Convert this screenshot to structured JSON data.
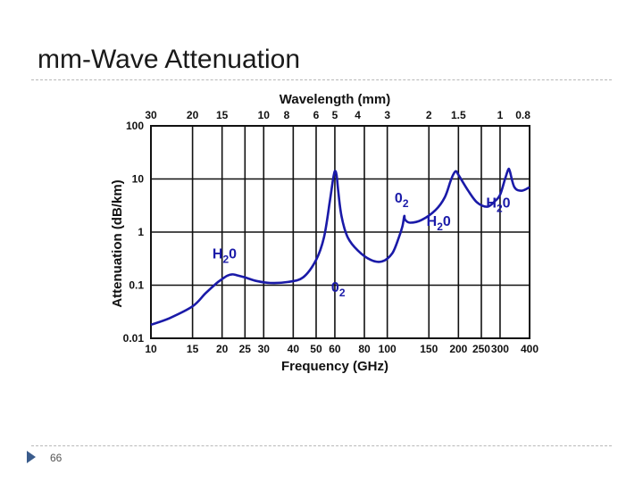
{
  "slide": {
    "title": "mm-Wave Attenuation",
    "page_number": "66"
  },
  "chart_data": {
    "type": "line",
    "title": "Wavelength (mm)",
    "xlabel": "Frequency (GHz)",
    "ylabel": "Attenuation (dB/km)",
    "x_scale": "log",
    "y_scale": "log",
    "xlim": [
      10,
      400
    ],
    "ylim": [
      0.01,
      100
    ],
    "grid": true,
    "x_ticks": [
      {
        "value": 10,
        "label": "10"
      },
      {
        "value": 15,
        "label": "15"
      },
      {
        "value": 20,
        "label": "20"
      },
      {
        "value": 25,
        "label": "25"
      },
      {
        "value": 30,
        "label": "30"
      },
      {
        "value": 40,
        "label": "40"
      },
      {
        "value": 50,
        "label": "50"
      },
      {
        "value": 60,
        "label": "60"
      },
      {
        "value": 80,
        "label": "80"
      },
      {
        "value": 100,
        "label": "100"
      },
      {
        "value": 150,
        "label": "150"
      },
      {
        "value": 200,
        "label": "200"
      },
      {
        "value": 250,
        "label": "250"
      },
      {
        "value": 300,
        "label": "300"
      },
      {
        "value": 400,
        "label": "400"
      }
    ],
    "top_ticks": [
      {
        "value": 30,
        "label": "30"
      },
      {
        "value": 20,
        "label": "20"
      },
      {
        "value": 15,
        "label": "15"
      },
      {
        "value": 10,
        "label": "10"
      },
      {
        "value": 8,
        "label": "8"
      },
      {
        "value": 6,
        "label": "6"
      },
      {
        "value": 5,
        "label": "5"
      },
      {
        "value": 4,
        "label": "4"
      },
      {
        "value": 3,
        "label": "3"
      },
      {
        "value": 2,
        "label": "2"
      },
      {
        "value": 1.5,
        "label": "1.5"
      },
      {
        "value": 1,
        "label": "1"
      },
      {
        "value": 0.8,
        "label": "0.8"
      }
    ],
    "y_ticks": [
      {
        "value": 100,
        "label": "100"
      },
      {
        "value": 10,
        "label": "10"
      },
      {
        "value": 1,
        "label": "1"
      },
      {
        "value": 0.1,
        "label": "0.1"
      },
      {
        "value": 0.01,
        "label": "0.01"
      }
    ],
    "series": [
      {
        "color": "#1a1aa8",
        "x": [
          10,
          12,
          15,
          17,
          19,
          20,
          21,
          22,
          23,
          25,
          28,
          32,
          38,
          44,
          50,
          54,
          57,
          59,
          60,
          61,
          62,
          64,
          68,
          75,
          85,
          95,
          105,
          112,
          116,
          118,
          119,
          125,
          140,
          160,
          175,
          185,
          190,
          195,
          200,
          220,
          240,
          265,
          285,
          300,
          315,
          325,
          330,
          345,
          370,
          400
        ],
        "y": [
          0.018,
          0.024,
          0.04,
          0.07,
          0.11,
          0.13,
          0.15,
          0.16,
          0.155,
          0.14,
          0.12,
          0.11,
          0.115,
          0.14,
          0.3,
          0.8,
          3.5,
          10,
          14,
          12,
          6,
          2,
          0.8,
          0.45,
          0.3,
          0.28,
          0.4,
          0.8,
          1.3,
          2.0,
          1.7,
          1.5,
          1.7,
          2.6,
          4.5,
          9.0,
          12,
          14,
          12,
          6,
          3.6,
          3.0,
          3.8,
          5.0,
          10,
          15,
          14,
          7,
          6,
          7
        ]
      }
    ],
    "annotations": [
      {
        "text": "H",
        "sub": "2",
        "tail": "0",
        "x": 20.5,
        "y": 0.32
      },
      {
        "text": "0",
        "sub": "2",
        "tail": "",
        "x": 62,
        "y": 0.075
      },
      {
        "text": "0",
        "sub": "2",
        "tail": "",
        "x": 115,
        "y": 3.6
      },
      {
        "text": "H",
        "sub": "2",
        "tail": "0",
        "x": 165,
        "y": 1.3
      },
      {
        "text": "H",
        "sub": "2",
        "tail": "0",
        "x": 295,
        "y": 2.9
      }
    ]
  }
}
